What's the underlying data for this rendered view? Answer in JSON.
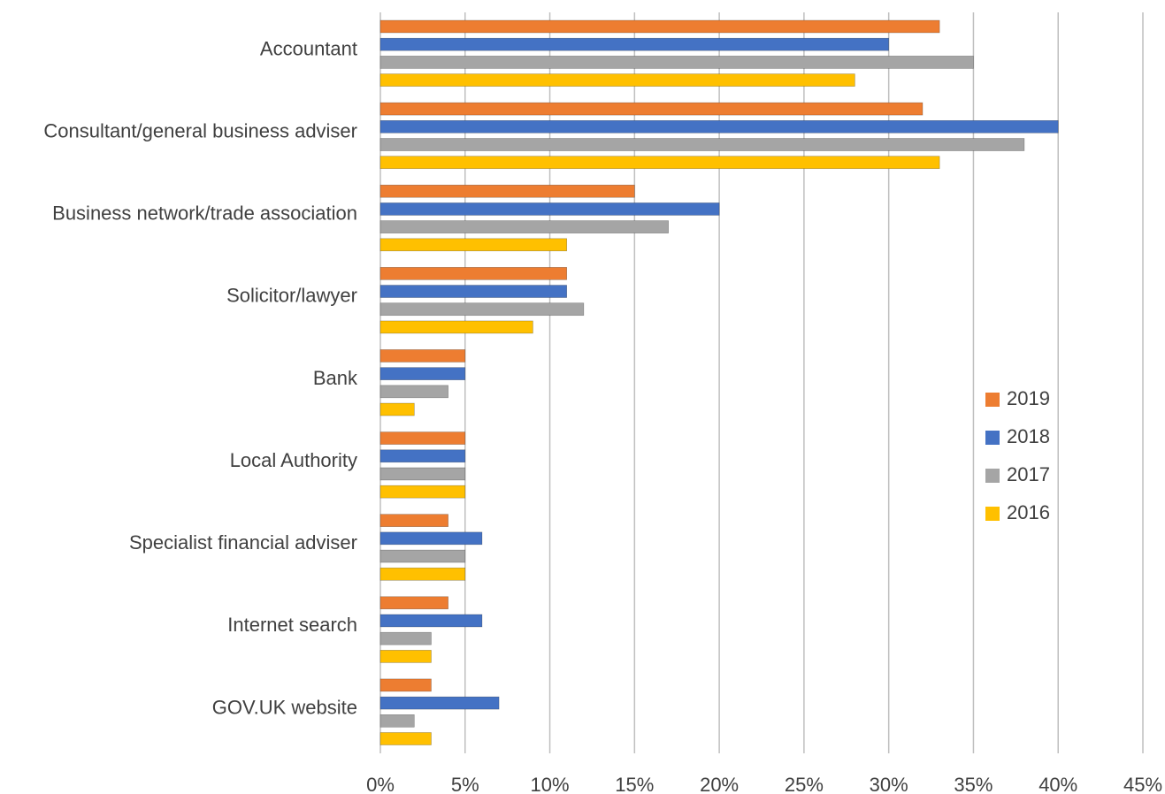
{
  "chart_data": {
    "type": "bar",
    "orientation": "horizontal",
    "categories": [
      "Accountant",
      "Consultant/general business adviser",
      "Business network/trade association",
      "Solicitor/lawyer",
      "Bank",
      "Local Authority",
      "Specialist financial adviser",
      "Internet search",
      "GOV.UK website"
    ],
    "series": [
      {
        "name": "2019",
        "color": "#ED7D31",
        "values": [
          33,
          32,
          15,
          11,
          5,
          5,
          4,
          4,
          3
        ]
      },
      {
        "name": "2018",
        "color": "#4472C4",
        "values": [
          30,
          40,
          20,
          11,
          5,
          5,
          6,
          6,
          7
        ]
      },
      {
        "name": "2017",
        "color": "#A5A5A5",
        "values": [
          35,
          38,
          17,
          12,
          4,
          5,
          5,
          3,
          2
        ]
      },
      {
        "name": "2016",
        "color": "#FFC000",
        "values": [
          28,
          33,
          11,
          9,
          2,
          5,
          5,
          3,
          3
        ]
      }
    ],
    "xticks": [
      "0%",
      "5%",
      "10%",
      "15%",
      "20%",
      "25%",
      "30%",
      "35%",
      "40%",
      "45%"
    ],
    "xlim": [
      0,
      45
    ],
    "unit": "%",
    "grid": "vertical",
    "legend_position": "right",
    "title": "",
    "xlabel": "",
    "ylabel": ""
  }
}
